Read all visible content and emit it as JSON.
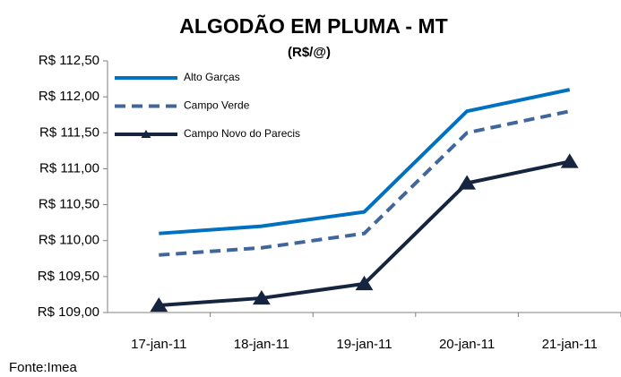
{
  "chart_data": {
    "type": "line",
    "title": "ALGODÃO EM PLUMA - MT",
    "subtitle": "(R$/@)",
    "categories": [
      "17-jan-11",
      "18-jan-11",
      "19-jan-11",
      "20-jan-11",
      "21-jan-11"
    ],
    "series": [
      {
        "name": "Alto Garças",
        "color": "#0070c0",
        "dash": "solid",
        "marker": "none",
        "values": [
          110.1,
          110.2,
          110.4,
          111.8,
          112.1
        ]
      },
      {
        "name": "Campo Verde",
        "color": "#41669c",
        "dash": "dashed",
        "marker": "none",
        "values": [
          109.8,
          109.9,
          110.1,
          111.5,
          111.8
        ]
      },
      {
        "name": "Campo Novo do Parecis",
        "color": "#15253f",
        "dash": "solid",
        "marker": "triangle",
        "values": [
          109.1,
          109.2,
          109.4,
          110.8,
          111.1
        ]
      }
    ],
    "ylim": [
      109,
      112.5
    ],
    "yticks": [
      {
        "value": 109,
        "label": "R$ 109,00"
      },
      {
        "value": 109.5,
        "label": "R$ 109,50"
      },
      {
        "value": 110,
        "label": "R$ 110,00"
      },
      {
        "value": 110.5,
        "label": "R$ 110,50"
      },
      {
        "value": 111,
        "label": "R$ 111,00"
      },
      {
        "value": 111.5,
        "label": "R$ 111,50"
      },
      {
        "value": 112,
        "label": "R$ 112,00"
      },
      {
        "value": 112.5,
        "label": "R$ 112,50"
      }
    ],
    "grid": false,
    "legend": "top-left",
    "source": "Fonte:Imea"
  }
}
